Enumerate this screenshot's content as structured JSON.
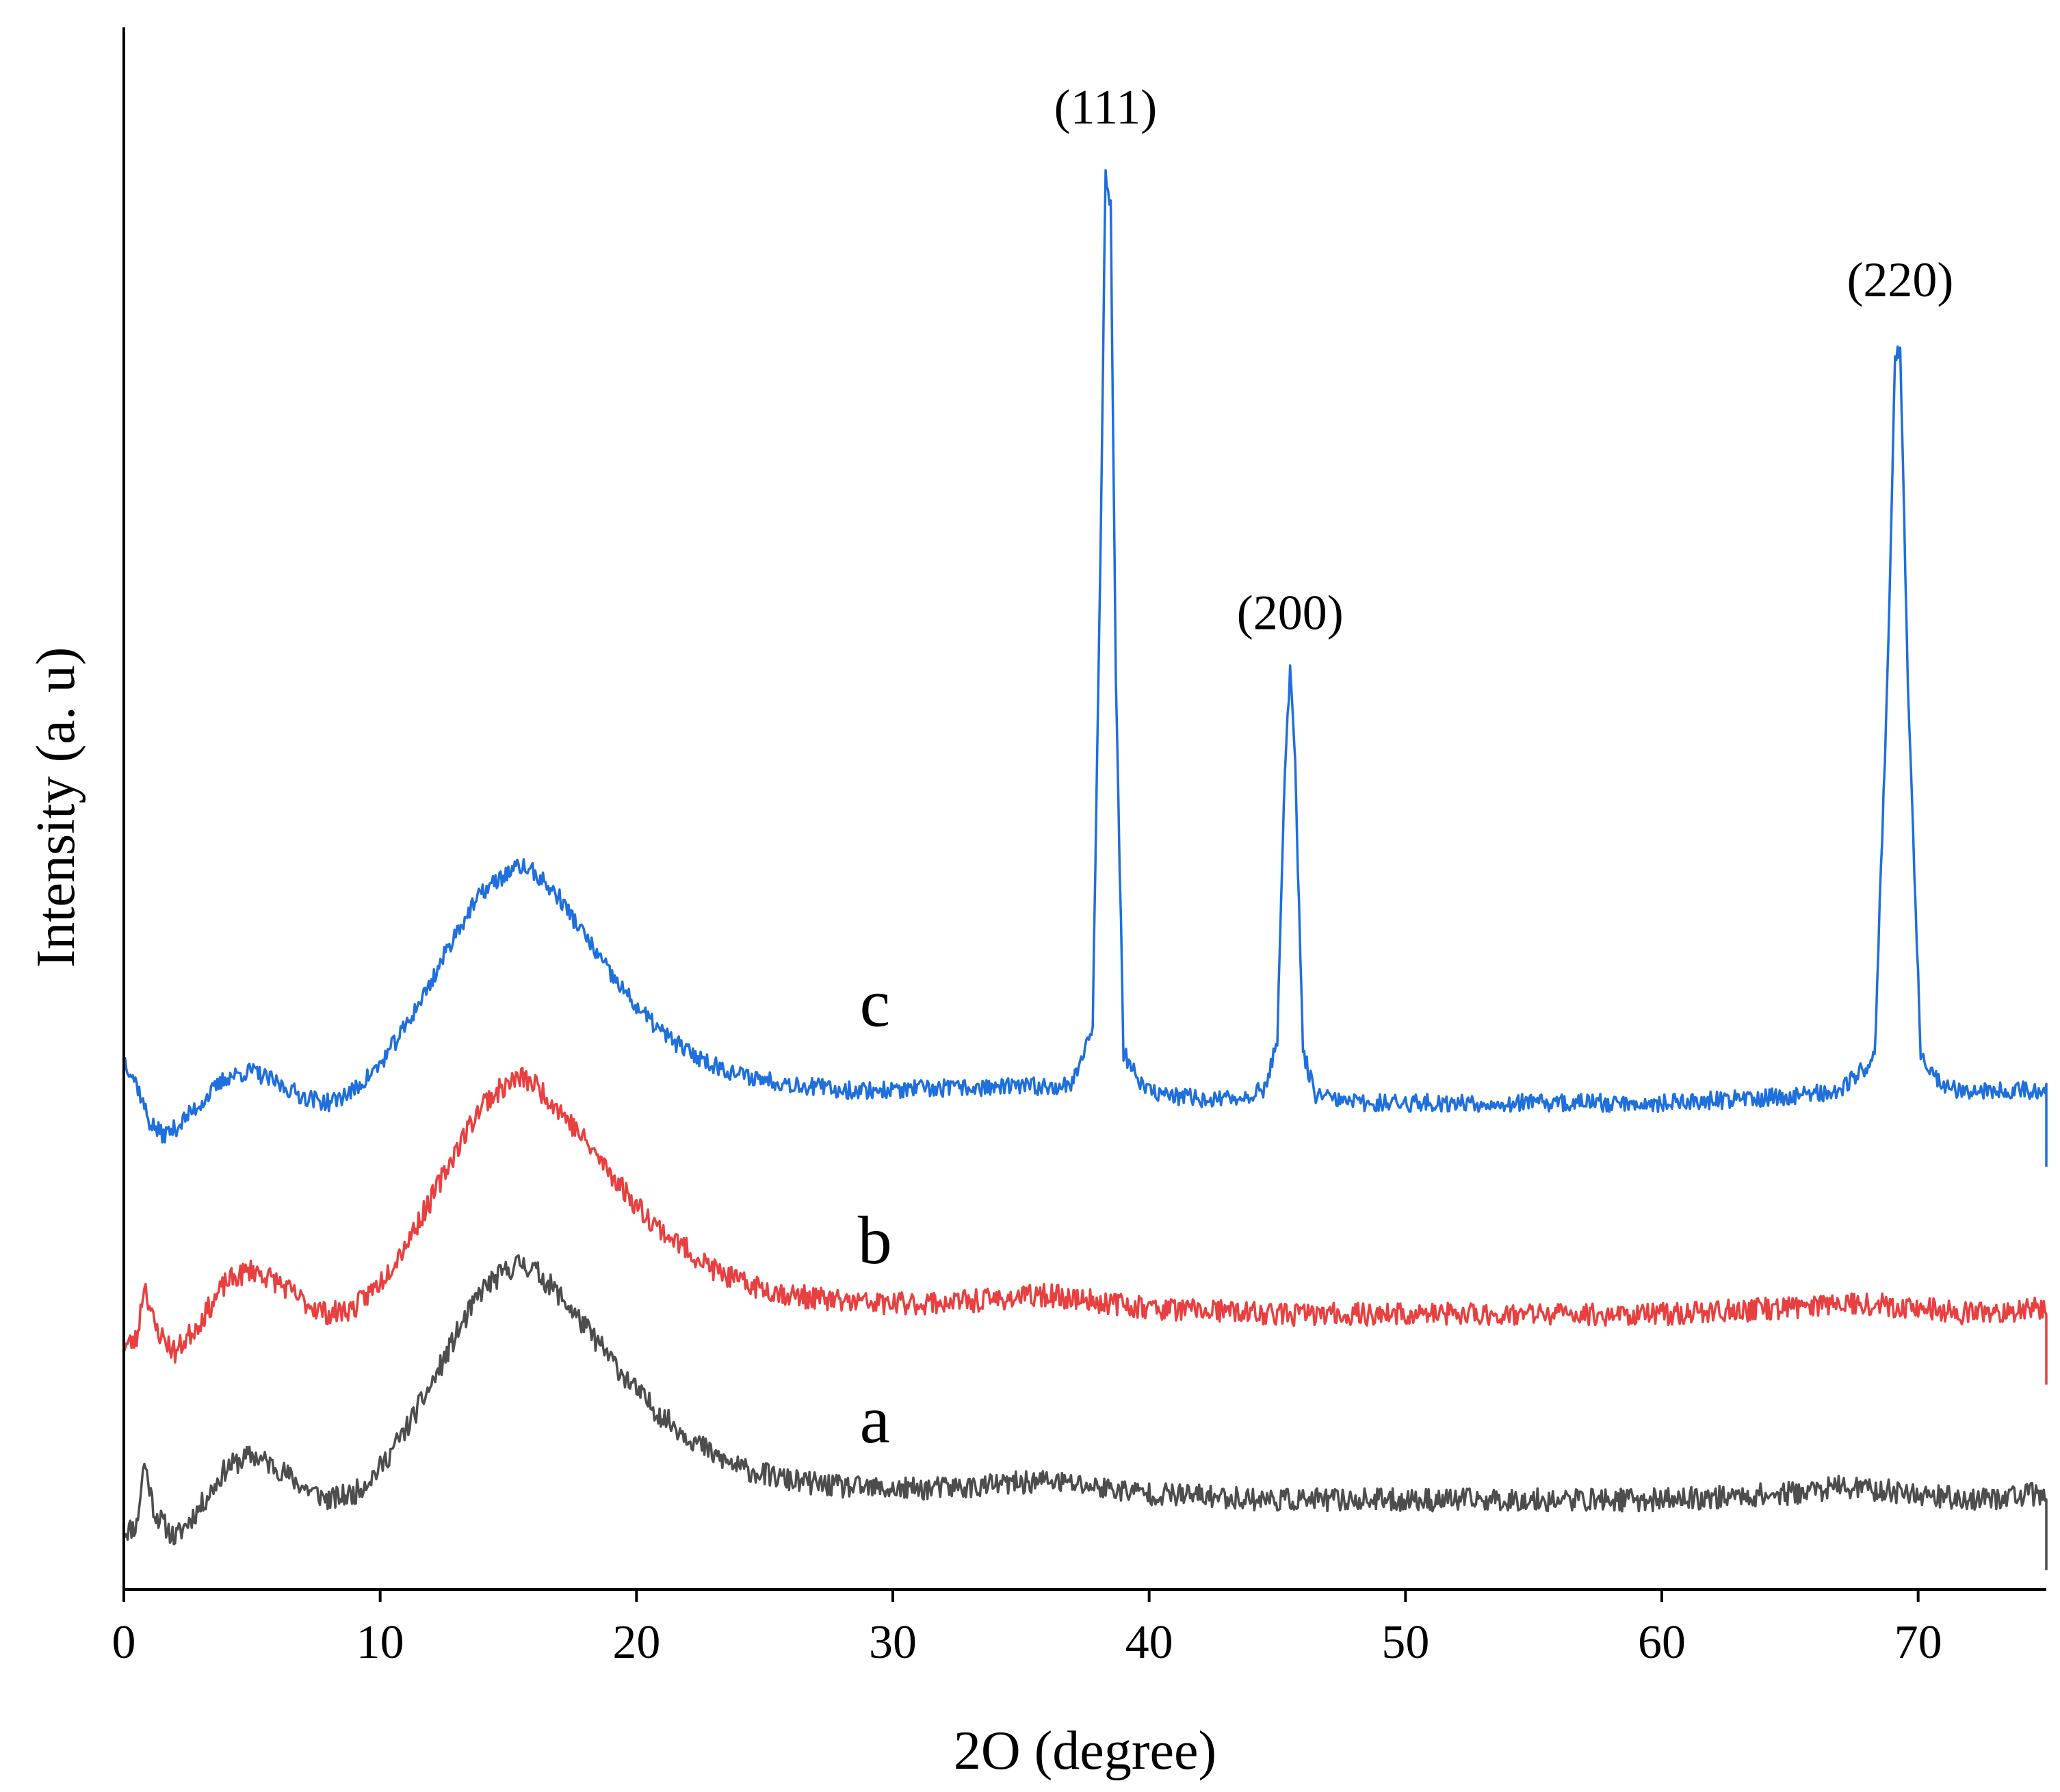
{
  "chart_data": {
    "type": "line",
    "title": "",
    "xlabel": "2O (degree)",
    "ylabel": "Intensity (a. u)",
    "xlim": [
      0,
      75
    ],
    "ylim": [
      0,
      12.2
    ],
    "xticks": [
      0,
      10,
      20,
      30,
      40,
      50,
      60,
      70
    ],
    "y_ticks_shown": false,
    "grid": false,
    "legend": "none",
    "series": [
      {
        "name": "a",
        "label": "a",
        "color": "#4d4d4d",
        "offset": 0.45,
        "noise": 0.09,
        "seed": 11,
        "x": [
          0,
          0.5,
          0.8,
          1.2,
          2,
          3,
          4,
          5,
          6,
          7,
          8,
          9,
          10,
          11,
          12,
          13,
          14,
          15,
          15.5,
          16,
          17,
          18,
          19,
          20,
          21,
          22,
          23,
          24,
          26,
          28,
          30,
          33,
          36,
          40,
          45,
          50,
          55,
          60,
          65,
          67,
          70,
          72,
          75
        ],
        "y": [
          0.0,
          0.05,
          0.55,
          0.15,
          -0.05,
          0.2,
          0.5,
          0.6,
          0.5,
          0.35,
          0.25,
          0.3,
          0.5,
          0.8,
          1.15,
          1.55,
          1.9,
          2.05,
          2.1,
          2.05,
          1.85,
          1.6,
          1.35,
          1.1,
          0.9,
          0.75,
          0.6,
          0.5,
          0.4,
          0.35,
          0.33,
          0.35,
          0.4,
          0.3,
          0.25,
          0.25,
          0.25,
          0.25,
          0.3,
          0.35,
          0.3,
          0.25,
          0.3
        ]
      },
      {
        "name": "b",
        "label": "b",
        "color": "#e84040",
        "offset": 1.9,
        "noise": 0.09,
        "seed": 23,
        "x": [
          0,
          0.5,
          0.8,
          1.2,
          2,
          3,
          4,
          5,
          6,
          7,
          8,
          9,
          10,
          11,
          12,
          13,
          14,
          15,
          15.5,
          16,
          17,
          18,
          19,
          20,
          21,
          22,
          23,
          24,
          26,
          28,
          30,
          33,
          36,
          40,
          45,
          50,
          55,
          60,
          65,
          67,
          70,
          72,
          75
        ],
        "y": [
          0.0,
          0.05,
          0.5,
          0.15,
          -0.05,
          0.2,
          0.5,
          0.6,
          0.5,
          0.35,
          0.25,
          0.3,
          0.5,
          0.8,
          1.15,
          1.55,
          1.9,
          2.05,
          2.1,
          2.05,
          1.85,
          1.6,
          1.35,
          1.1,
          0.9,
          0.75,
          0.6,
          0.5,
          0.4,
          0.35,
          0.33,
          0.35,
          0.4,
          0.3,
          0.25,
          0.25,
          0.25,
          0.25,
          0.3,
          0.35,
          0.3,
          0.25,
          0.3
        ]
      },
      {
        "name": "c",
        "label": "c",
        "color": "#1f6fdc",
        "offset": 3.6,
        "noise": 0.07,
        "seed": 37,
        "x": [
          0,
          0.5,
          1,
          1.5,
          2,
          3,
          4,
          5,
          6,
          7,
          8,
          9,
          10,
          11,
          12,
          13,
          14,
          15,
          15.5,
          16,
          17,
          18,
          19,
          20,
          21,
          22,
          23,
          24,
          26,
          28,
          30,
          33,
          36,
          37,
          37.8,
          38.1,
          38.3,
          38.5,
          38.7,
          39,
          39.8,
          41,
          43,
          44.5,
          45,
          45.3,
          45.5,
          45.7,
          46,
          46.5,
          48,
          50,
          55,
          60,
          65,
          67,
          68.3,
          68.8,
          69.1,
          69.3,
          69.6,
          70.1,
          71,
          72,
          75
        ],
        "y": [
          0.55,
          0.35,
          0.05,
          -0.05,
          0.0,
          0.2,
          0.4,
          0.45,
          0.35,
          0.25,
          0.2,
          0.3,
          0.5,
          0.8,
          1.15,
          1.55,
          1.85,
          2.0,
          2.05,
          2.0,
          1.8,
          1.5,
          1.2,
          0.95,
          0.75,
          0.6,
          0.5,
          0.42,
          0.35,
          0.3,
          0.3,
          0.32,
          0.33,
          0.35,
          0.8,
          4.5,
          7.5,
          7.2,
          3.5,
          0.6,
          0.3,
          0.25,
          0.22,
          0.3,
          0.7,
          2.8,
          3.6,
          2.8,
          0.6,
          0.25,
          0.2,
          0.2,
          0.2,
          0.2,
          0.25,
          0.3,
          0.55,
          3.5,
          6.0,
          6.1,
          3.5,
          0.6,
          0.32,
          0.3,
          0.3
        ]
      }
    ],
    "series_labels": [
      {
        "text": "a",
        "x": 29.3,
        "y": 1.15
      },
      {
        "text": "b",
        "x": 29.3,
        "y": 2.55
      },
      {
        "text": "c",
        "x": 29.3,
        "y": 4.4
      }
    ],
    "annotations": [
      {
        "text": "(111)",
        "x": 38.3,
        "y": 11.45
      },
      {
        "text": "(200)",
        "x": 45.5,
        "y": 7.5
      },
      {
        "text": "(220)",
        "x": 69.3,
        "y": 10.1
      }
    ]
  }
}
